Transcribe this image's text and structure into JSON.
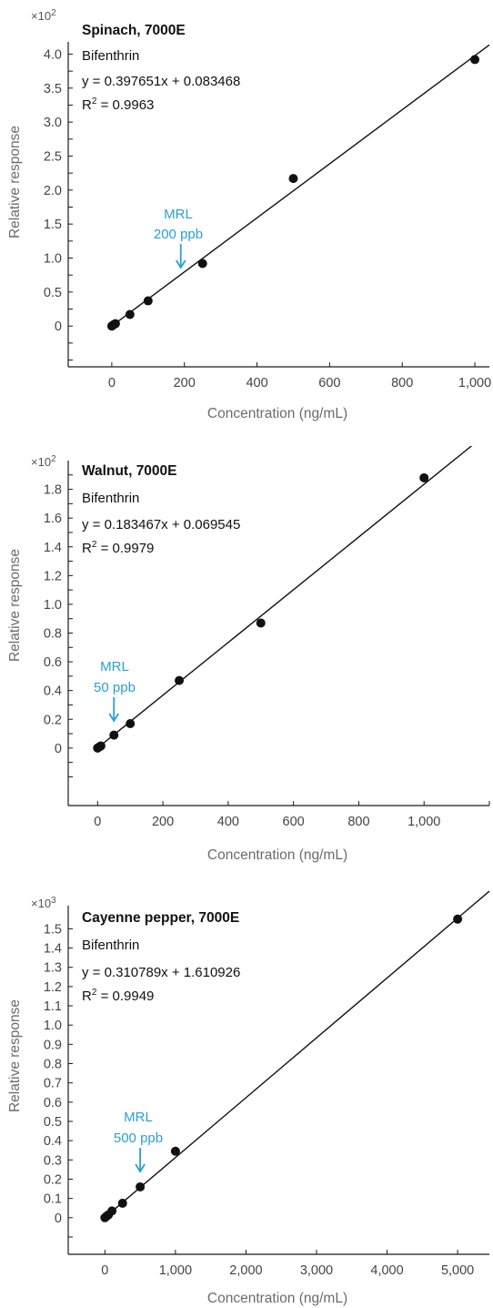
{
  "colors": {
    "axis": "#1a1a1a",
    "point": "#111111",
    "fit_line": "#111111",
    "mrl": "#2a9fd6",
    "axis_title": "#6b6b6b",
    "text": "#111111"
  },
  "chart_data": [
    {
      "type": "scatter",
      "title": "Spinach, 7000E",
      "analyte": "Bifenthrin",
      "equation": "y = 0.397651x  + 0.083468",
      "r2_label": "R",
      "r2_sup": "2",
      "r2_value": " = 0.9963",
      "multiplier_base": "×10",
      "multiplier_exp": "2",
      "xlabel": "Concentration (ng/mL)",
      "ylabel": "Relative response",
      "xlim": [
        -120,
        1040
      ],
      "ylim": [
        -0.6,
        4.18
      ],
      "x_ticks": [
        0,
        200,
        400,
        600,
        800,
        1000
      ],
      "x_tick_labels": [
        "0",
        "200",
        "400",
        "600",
        "800",
        "1,000"
      ],
      "y_ticks": [
        0,
        0.5,
        1.0,
        1.5,
        2.0,
        2.5,
        3.0,
        3.5,
        4.0
      ],
      "y_tick_labels": [
        "0",
        "0.5",
        "1.0",
        "1.5",
        "2.0",
        "2.5",
        "3.0",
        "3.5",
        "4.0"
      ],
      "y_minor_ticks": [
        -0.5,
        -0.25,
        0.25,
        0.75,
        1.25,
        1.75,
        2.25,
        2.75,
        3.25,
        3.75
      ],
      "fit": {
        "slope": 0.00397651,
        "intercept": 0.00083468,
        "x_start": 0,
        "x_end": 1040
      },
      "points": [
        {
          "x": 0,
          "y": 0.0
        },
        {
          "x": 5,
          "y": 0.02
        },
        {
          "x": 10,
          "y": 0.035
        },
        {
          "x": 50,
          "y": 0.17
        },
        {
          "x": 100,
          "y": 0.37
        },
        {
          "x": 250,
          "y": 0.92
        },
        {
          "x": 500,
          "y": 2.17
        },
        {
          "x": 1000,
          "y": 3.92
        }
      ],
      "mrl": {
        "line1": "MRL",
        "line2": "200 ppb",
        "x": 200
      }
    },
    {
      "type": "scatter",
      "title": "Walnut, 7000E",
      "analyte": "Bifenthrin",
      "equation": "y = 0.183467x  + 0.069545",
      "r2_label": "R",
      "r2_sup": "2",
      "r2_value": " = 0.9979",
      "multiplier_base": "×10",
      "multiplier_exp": "2",
      "xlabel": "Concentration (ng/mL)",
      "ylabel": "Relative response",
      "xlim": [
        -90,
        1200
      ],
      "ylim": [
        -0.4,
        2.0
      ],
      "x_ticks": [
        0,
        200,
        400,
        600,
        800,
        1000,
        1200
      ],
      "x_tick_labels": [
        "0",
        "200",
        "400",
        "600",
        "800",
        "1,000",
        ""
      ],
      "y_ticks": [
        0,
        0.2,
        0.4,
        0.6,
        0.8,
        1.0,
        1.2,
        1.4,
        1.6,
        1.8
      ],
      "y_tick_labels": [
        "0",
        "0.2",
        "0.4",
        "0.6",
        "0.8",
        "1.0",
        "1.2",
        "1.4",
        "1.6",
        "1.8"
      ],
      "y_minor_ticks": [
        -0.2,
        -0.1,
        0.1,
        0.3,
        0.5,
        0.7,
        0.9,
        1.1,
        1.3,
        1.5,
        1.7,
        1.9
      ],
      "fit": {
        "slope": 0.00183467,
        "intercept": 0.00069545,
        "x_start": 0,
        "x_end": 1180
      },
      "points": [
        {
          "x": 0,
          "y": 0.0
        },
        {
          "x": 5,
          "y": 0.008
        },
        {
          "x": 10,
          "y": 0.015
        },
        {
          "x": 50,
          "y": 0.09
        },
        {
          "x": 100,
          "y": 0.17
        },
        {
          "x": 250,
          "y": 0.47
        },
        {
          "x": 500,
          "y": 0.87
        },
        {
          "x": 1000,
          "y": 1.88
        }
      ],
      "mrl": {
        "line1": "MRL",
        "line2": "50 ppb",
        "x": 50
      }
    },
    {
      "type": "scatter",
      "title": "Cayenne pepper, 7000E",
      "analyte": "Bifenthrin",
      "equation": "y = 0.310789x  + 1.610926",
      "r2_label": "R",
      "r2_sup": "2",
      "r2_value": " = 0.9949",
      "multiplier_base": "×10",
      "multiplier_exp": "3",
      "xlabel": "Concentration (ng/mL)",
      "ylabel": "Relative response",
      "xlim": [
        -520,
        5450
      ],
      "ylim": [
        -0.19,
        1.62
      ],
      "x_ticks": [
        0,
        1000,
        2000,
        3000,
        4000,
        5000
      ],
      "x_tick_labels": [
        "0",
        "1,000",
        "2,000",
        "3,000",
        "4,000",
        "5,000"
      ],
      "y_ticks": [
        0,
        0.1,
        0.2,
        0.3,
        0.4,
        0.5,
        0.6,
        0.7,
        0.8,
        0.9,
        1.0,
        1.1,
        1.2,
        1.3,
        1.4,
        1.5
      ],
      "y_tick_labels": [
        "0",
        "0.1",
        "0.2",
        "0.3",
        "0.4",
        "0.5",
        "0.6",
        "0.7",
        "0.8",
        "0.9",
        "1.0",
        "1.1",
        "1.2",
        "1.3",
        "1.4",
        "1.5"
      ],
      "y_minor_ticks": [
        -0.1
      ],
      "fit": {
        "slope": 0.000310789,
        "intercept": 0.001610926,
        "x_start": 0,
        "x_end": 5450
      },
      "points": [
        {
          "x": 0,
          "y": 0.0
        },
        {
          "x": 25,
          "y": 0.008
        },
        {
          "x": 50,
          "y": 0.015
        },
        {
          "x": 100,
          "y": 0.035
        },
        {
          "x": 250,
          "y": 0.075
        },
        {
          "x": 500,
          "y": 0.16
        },
        {
          "x": 1000,
          "y": 0.345
        },
        {
          "x": 5000,
          "y": 1.55
        }
      ],
      "mrl": {
        "line1": "MRL",
        "line2": "500 ppb",
        "x": 500
      }
    }
  ]
}
